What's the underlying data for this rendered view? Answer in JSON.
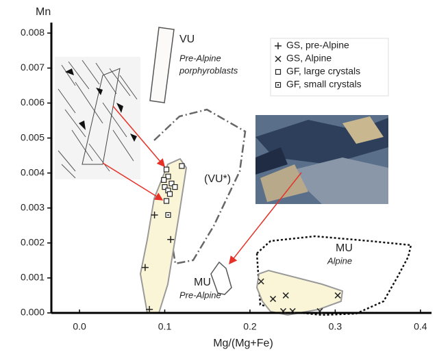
{
  "chart_data": {
    "type": "scatter",
    "x_label": "Mg/(Mg+Fe)",
    "y_label": "Mn",
    "xlim": [
      -0.033,
      0.413
    ],
    "ylim": [
      0,
      0.0083
    ],
    "xticks": [
      {
        "value": 0,
        "label": "0.0"
      },
      0.1,
      0.2,
      0.3,
      0.4
    ],
    "yticks": [
      {
        "value": 0,
        "label": "0.000"
      },
      0.001,
      0.002,
      0.003,
      0.004,
      0.005,
      0.006,
      0.007,
      0.008
    ],
    "grid": false,
    "series": [
      {
        "name": "GS, pre-Alpine",
        "marker": "plus",
        "color": "#222222",
        "x": [
          0.088,
          0.107,
          0.077,
          0.082
        ],
        "y": [
          0.0028,
          0.0021,
          0.0013,
          0.0001
        ]
      },
      {
        "name": "GS, Alpine",
        "marker": "cross",
        "color": "#222222",
        "x": [
          0.213,
          0.227,
          0.242,
          0.239,
          0.25,
          0.282,
          0.303
        ],
        "y": [
          0.0009,
          0.0004,
          0.0005,
          5e-05,
          5e-05,
          5e-05,
          0.0005
        ]
      },
      {
        "name": "GF, large crystals",
        "marker": "square",
        "color": "#222222",
        "x": [
          0.102,
          0.104,
          0.099,
          0.1,
          0.108,
          0.104,
          0.102,
          0.112,
          0.12,
          0.106
        ],
        "y": [
          0.0041,
          0.0039,
          0.0038,
          0.0036,
          0.0037,
          0.0035,
          0.0032,
          0.0036,
          0.0042,
          0.0034
        ]
      },
      {
        "name": "GF, small crystals",
        "marker": "square_dot",
        "color": "#222222",
        "x": [
          0.104
        ],
        "y": [
          0.0028
        ]
      }
    ],
    "annotations": [
      "VU",
      "Pre-Alpine",
      "porphyroblasts",
      "(VU*)",
      "MU",
      "Pre-Alpine",
      "MU",
      "Alpine"
    ]
  }
}
